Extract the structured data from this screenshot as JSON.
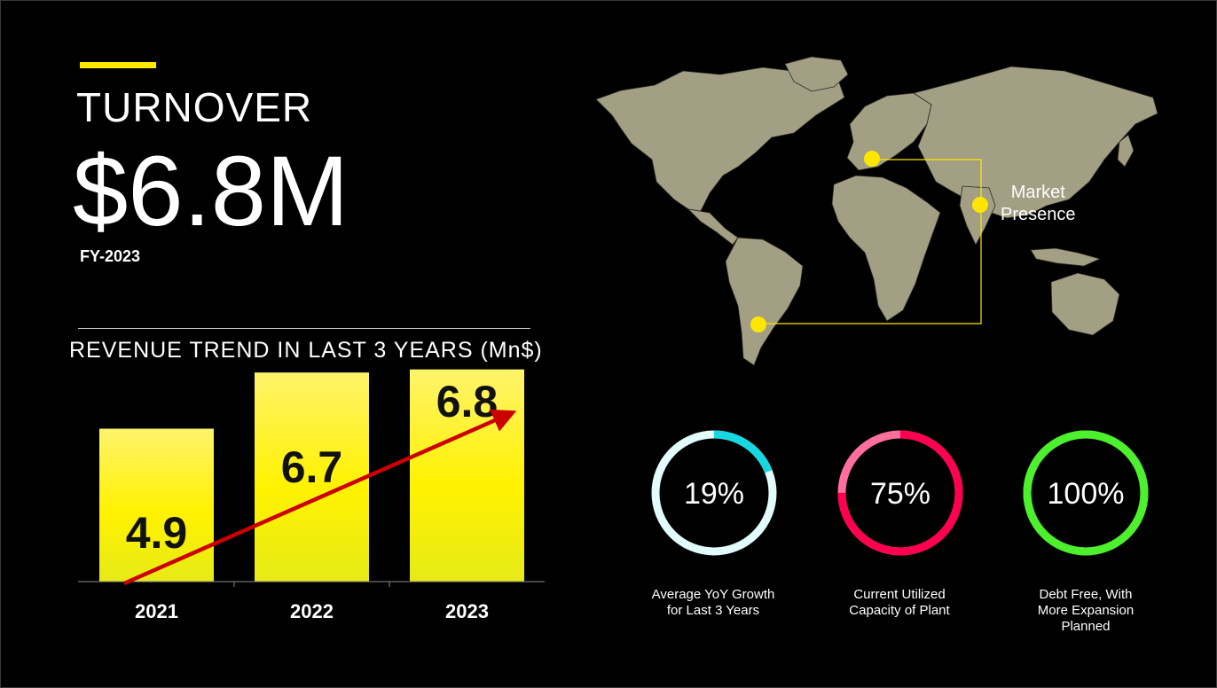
{
  "header": {
    "label": "TURNOVER",
    "value": "$6.8M",
    "year": "FY-2023"
  },
  "trend": {
    "title": "REVENUE TREND IN LAST 3 YEARS (Mn$)"
  },
  "chart_data": {
    "type": "bar",
    "title": "REVENUE TREND IN LAST 3 YEARS (Mn$)",
    "categories": [
      "2021",
      "2022",
      "2023"
    ],
    "values": [
      4.9,
      6.7,
      6.8
    ],
    "data_labels": [
      "4.9",
      "6.7",
      "6.8"
    ],
    "xlabel": "",
    "ylabel": "",
    "grid": false,
    "legend": "none",
    "trend_arrow": true,
    "bar_color": "#ffee00",
    "arrow_color": "#cc0000"
  },
  "map": {
    "label_line1": "Market",
    "label_line2": "Presence",
    "land_color": "#a29f84",
    "marker_color": "#ffe600"
  },
  "kpis": [
    {
      "value": "19%",
      "fraction": 0.19,
      "caption_lines": [
        "Average YoY Growth",
        "for Last 3 Years"
      ],
      "ring_color": "#e2fbfb",
      "accent_color": "#17d8e0"
    },
    {
      "value": "75%",
      "fraction": 0.75,
      "caption_lines": [
        "Current Utilized",
        "Capacity of Plant"
      ],
      "ring_color": "#ff6f9e",
      "accent_color": "#ff0050"
    },
    {
      "value": "100%",
      "fraction": 1.0,
      "caption_lines": [
        "Debt Free, With",
        "More Expansion",
        "Planned"
      ],
      "ring_color": "#8ff58a",
      "accent_color": "#4cf02c"
    }
  ]
}
